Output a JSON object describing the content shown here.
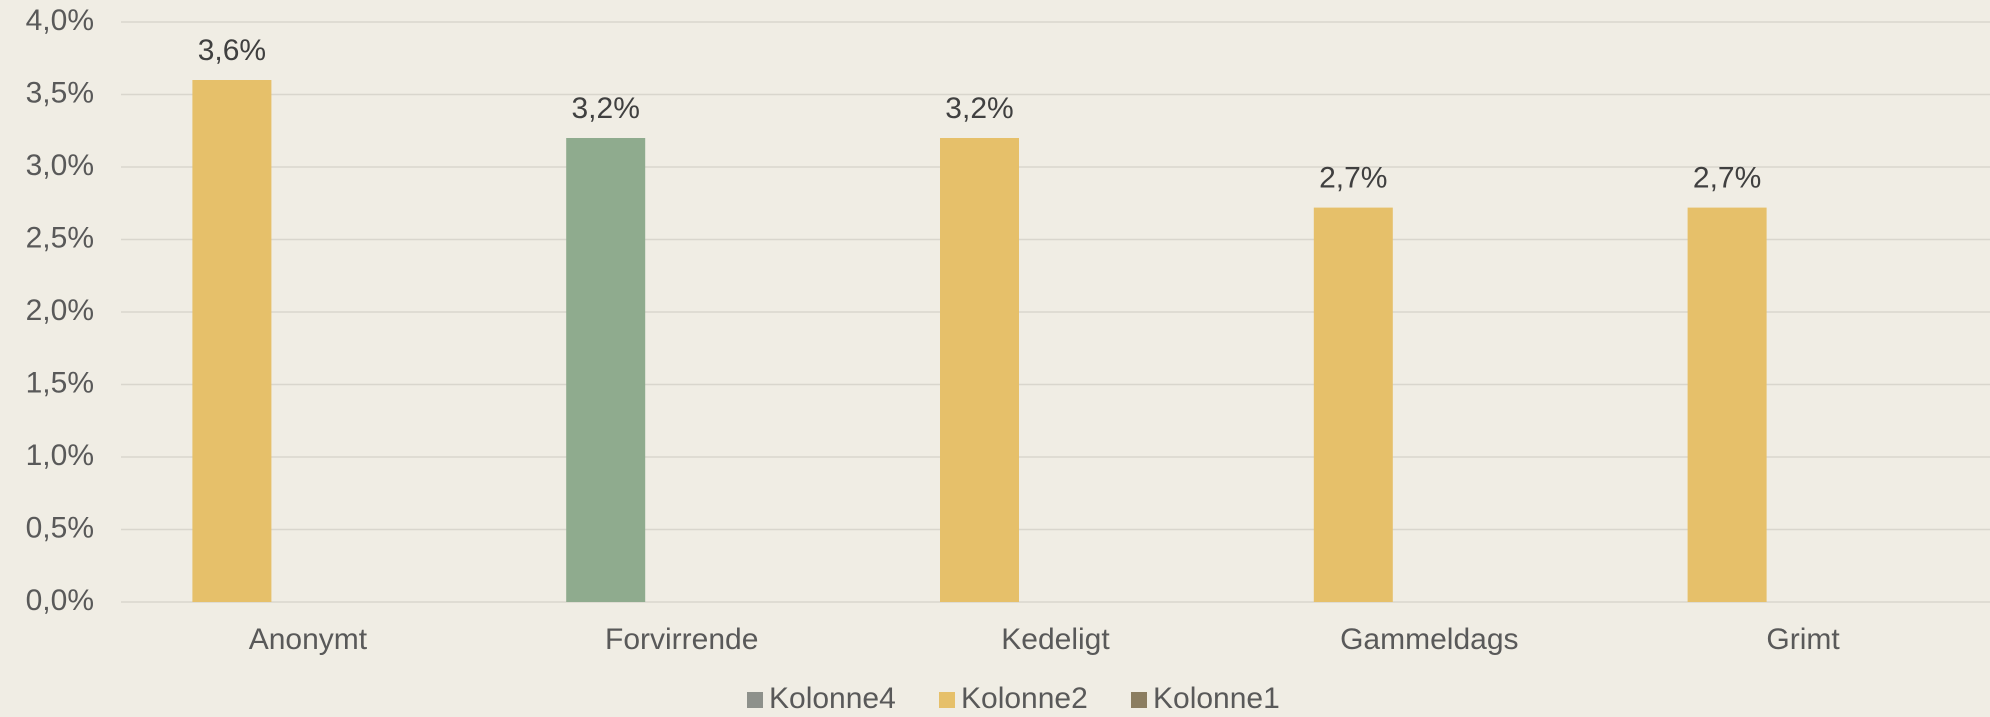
{
  "chart_data": {
    "type": "bar",
    "categories": [
      "Anonymt",
      "Forvirrende",
      "Kedeligt",
      "Gammeldags",
      "Grimt"
    ],
    "series": [
      {
        "name": "Kolonne4",
        "color": "#8e918b",
        "values": [
          null,
          null,
          null,
          null,
          null
        ]
      },
      {
        "name": "Kolonne2",
        "color": "#e6c06a",
        "point_colors": [
          "#e6c06a",
          "#8fab8e",
          "#e6c06a",
          "#e6c06a",
          "#e6c06a"
        ],
        "values": [
          3.6,
          3.2,
          3.2,
          2.72,
          2.72
        ],
        "value_labels": [
          "3,6%",
          "3,2%",
          "3,2%",
          "2,7%",
          "2,7%"
        ]
      },
      {
        "name": "Kolonne1",
        "color": "#8b7d60",
        "values": [
          null,
          null,
          null,
          null,
          null
        ]
      }
    ],
    "ylim": [
      0,
      4
    ],
    "yticks": [
      {
        "value": 0,
        "label": "0,0%"
      },
      {
        "value": 0.5,
        "label": "0,5%"
      },
      {
        "value": 1,
        "label": "1,0%"
      },
      {
        "value": 1.5,
        "label": "1,5%"
      },
      {
        "value": 2,
        "label": "2,0%"
      },
      {
        "value": 2.5,
        "label": "2,5%"
      },
      {
        "value": 3,
        "label": "3,0%"
      },
      {
        "value": 3.5,
        "label": "3,5%"
      },
      {
        "value": 4,
        "label": "4,0%"
      }
    ],
    "grid": true,
    "legend": "bottom"
  }
}
